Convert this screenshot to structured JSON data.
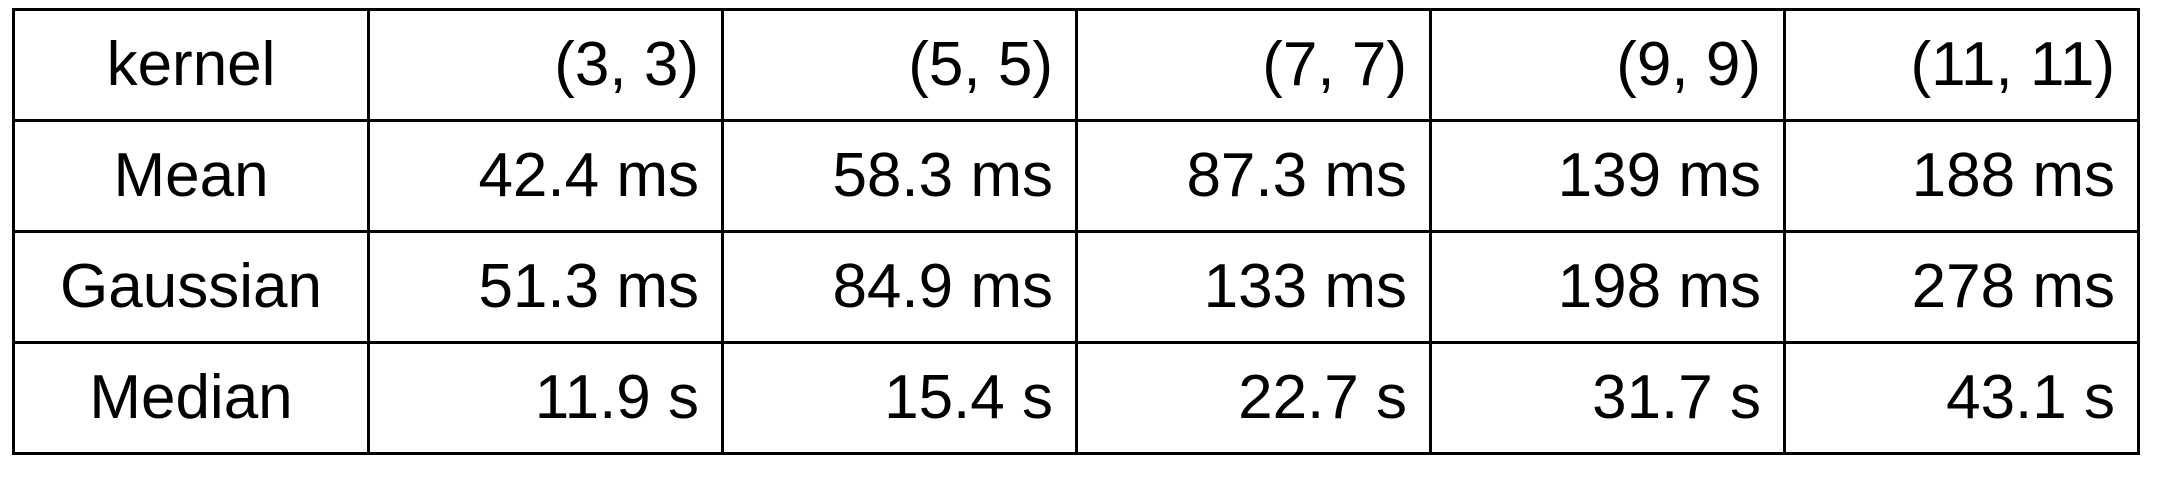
{
  "table": {
    "header": {
      "label": "kernel",
      "columns": [
        "(3, 3)",
        "(5, 5)",
        "(7, 7)",
        "(9, 9)",
        "(11, 11)"
      ]
    },
    "rows": [
      {
        "label": "Mean",
        "values": [
          "42.4 ms",
          "58.3 ms",
          "87.3 ms",
          "139 ms",
          "188 ms"
        ]
      },
      {
        "label": "Gaussian",
        "values": [
          "51.3 ms",
          "84.9 ms",
          "133 ms",
          "198 ms",
          "278 ms"
        ]
      },
      {
        "label": "Median",
        "values": [
          "11.9 s",
          "15.4 s",
          "22.7 s",
          "31.7 s",
          "43.1 s"
        ]
      }
    ]
  }
}
